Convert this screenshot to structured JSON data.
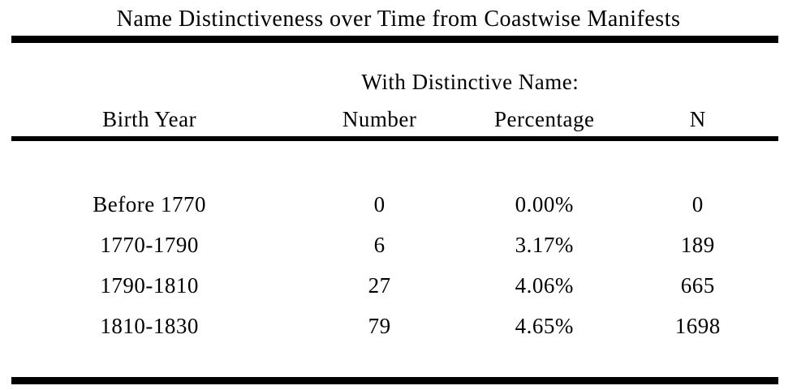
{
  "table": {
    "title": "Name Distinctiveness over Time from Coastwise Manifests",
    "group_header": "With Distinctive Name:",
    "columns": {
      "birth_year": "Birth Year",
      "number": "Number",
      "percentage": "Percentage",
      "n": "N"
    },
    "rows": [
      {
        "birth_year": "Before 1770",
        "number": "0",
        "percentage": "0.00%",
        "n": "0"
      },
      {
        "birth_year": "1770-1790",
        "number": "6",
        "percentage": "3.17%",
        "n": "189"
      },
      {
        "birth_year": "1790-1810",
        "number": "27",
        "percentage": "4.06%",
        "n": "665"
      },
      {
        "birth_year": "1810-1830",
        "number": "79",
        "percentage": "4.65%",
        "n": "1698"
      }
    ],
    "colors": {
      "text": "#000000",
      "rule": "#000000",
      "background": "#ffffff"
    }
  }
}
